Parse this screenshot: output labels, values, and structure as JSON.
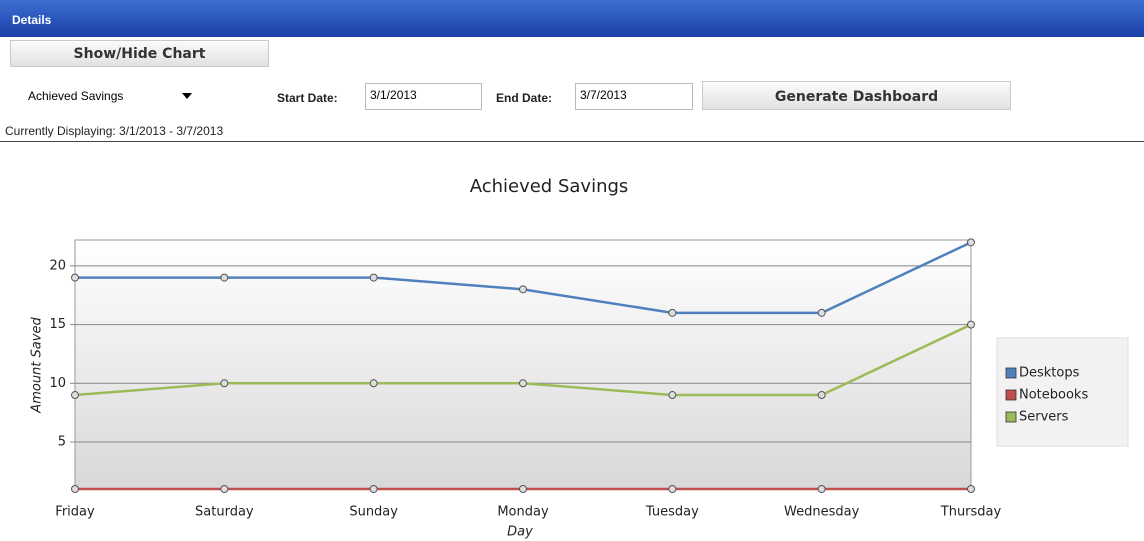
{
  "header": {
    "title": "Details"
  },
  "controls": {
    "toggle_button": "Show/Hide Chart",
    "dropdown": "Achieved Savings",
    "start_label": "Start Date:",
    "start_value": "3/1/2013",
    "end_label": "End Date:",
    "end_value": "3/7/2013",
    "generate_button": "Generate Dashboard",
    "status": "Currently Displaying: 3/1/2013 - 3/7/2013"
  },
  "chart_data": {
    "type": "line",
    "title": "Achieved Savings",
    "x_label": "Day",
    "y_label": "Amount Saved",
    "categories": [
      "Friday",
      "Saturday",
      "Sunday",
      "Monday",
      "Tuesday",
      "Wednesday",
      "Thursday"
    ],
    "series": [
      {
        "name": "Desktops",
        "color": "#4f81bd",
        "values": [
          19,
          19,
          19,
          18,
          16,
          16,
          22
        ]
      },
      {
        "name": "Notebooks",
        "color": "#c0504d",
        "values": [
          1,
          1,
          1,
          1,
          1,
          1,
          1
        ]
      },
      {
        "name": "Servers",
        "color": "#9bbb59",
        "values": [
          9,
          10,
          10,
          10,
          9,
          9,
          15
        ]
      }
    ],
    "ylim": [
      1,
      22.2
    ],
    "yticks": [
      5,
      10,
      15,
      20
    ],
    "grid": true,
    "legend": "right"
  }
}
